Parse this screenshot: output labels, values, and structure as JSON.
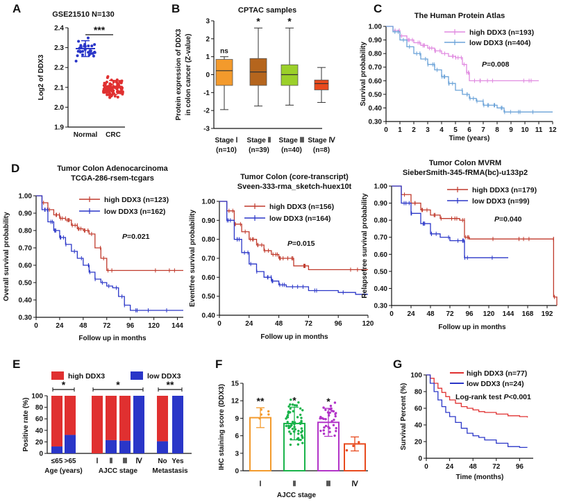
{
  "colors": {
    "red": "#e03030",
    "blue": "#2a36c8",
    "pink": "#e089e0",
    "lightblue": "#6aa2d8",
    "orange": "#f39a2c",
    "brown": "#b5651d",
    "lime": "#9bd02a",
    "redorange": "#e84a1e",
    "green": "#19b34a",
    "purple": "#b234c8",
    "darkred": "#c0392b",
    "navy": "#2a36c8"
  },
  "panel_labels": [
    "A",
    "B",
    "C",
    "D",
    "E",
    "F",
    "G"
  ],
  "chart_data": [
    {
      "id": "A",
      "type": "scatter",
      "title": "GSE21510  N=130",
      "ylabel": "Log2 of DDX3",
      "categories": [
        "Normal",
        "CRC"
      ],
      "ylim": [
        1.9,
        2.4
      ],
      "yticks": [
        "1.9",
        "2.0",
        "2.1",
        "2.2",
        "2.3",
        "2.4"
      ],
      "means": [
        2.295,
        2.1
      ],
      "sd": [
        0.04,
        0.035
      ],
      "n_points": [
        30,
        100
      ],
      "sig": "***"
    },
    {
      "id": "B",
      "type": "box",
      "title": "CPTAC samples",
      "ylabel": [
        "Protein expression of DDX3",
        "in colon cancer (Z-value)"
      ],
      "ylim": [
        -3,
        3
      ],
      "yticks": [
        "3",
        "2",
        "1",
        "0",
        "-1",
        "-2",
        "-3"
      ],
      "categories": [
        "Stage Ⅰ",
        "Stage Ⅱ",
        "Stage Ⅲ",
        "Stage Ⅳ"
      ],
      "ns": [
        "(n=10)",
        "(n=39)",
        "(n=40)",
        "(n=8)"
      ],
      "boxes": [
        {
          "min": -1.95,
          "q1": -0.6,
          "median": 0.22,
          "q3": 0.85,
          "max": 1.0,
          "sig": "ns"
        },
        {
          "min": -1.75,
          "q1": -0.6,
          "median": 0.15,
          "q3": 0.9,
          "max": 2.6,
          "sig": "*"
        },
        {
          "min": -1.7,
          "q1": -0.6,
          "median": 0.0,
          "q3": 0.55,
          "max": 2.6,
          "sig": "*"
        },
        {
          "min": -1.55,
          "q1": -0.85,
          "median": -0.5,
          "q3": -0.3,
          "max": 0.4,
          "sig": ""
        }
      ]
    },
    {
      "id": "C",
      "type": "line",
      "title": "The Human Protein Atlas",
      "xlabel": "Time (years)",
      "ylabel": "Survival probability",
      "xlim": [
        0,
        12
      ],
      "ylim": [
        0.3,
        1.0
      ],
      "xticks": [
        "0",
        "1",
        "2",
        "3",
        "4",
        "5",
        "6",
        "7",
        "8",
        "9",
        "10",
        "11",
        "12"
      ],
      "yticks": [
        "1.00",
        "0.90",
        "0.80",
        "0.70",
        "0.60",
        "0.50",
        "0.40",
        "0.30"
      ],
      "pvalue": "=0.008",
      "series": [
        {
          "name": "high DDX3 (n=193)",
          "color": "pink",
          "x": [
            0,
            0.5,
            1,
            1.5,
            2,
            2.5,
            3,
            3.5,
            4,
            4.5,
            5,
            5.5,
            5.8,
            6,
            7,
            8,
            11
          ],
          "y": [
            1,
            0.97,
            0.93,
            0.9,
            0.88,
            0.86,
            0.84,
            0.82,
            0.8,
            0.78,
            0.77,
            0.72,
            0.66,
            0.6,
            0.6,
            0.6,
            0.6
          ]
        },
        {
          "name": "low DDX3 (n=404)",
          "color": "lightblue",
          "x": [
            0,
            0.5,
            1,
            1.5,
            2,
            2.5,
            3,
            3.5,
            4,
            4.5,
            5,
            5.5,
            6,
            6.5,
            7,
            7.5,
            8,
            8.5,
            9,
            10,
            12
          ],
          "y": [
            1,
            0.96,
            0.9,
            0.85,
            0.8,
            0.76,
            0.72,
            0.68,
            0.63,
            0.58,
            0.53,
            0.5,
            0.47,
            0.45,
            0.42,
            0.42,
            0.4,
            0.37,
            0.37,
            0.37,
            0.37
          ]
        }
      ]
    },
    {
      "id": "D1",
      "type": "line",
      "title": [
        "Tumor Colon  Adenocarcinoma",
        "TCGA-286-rsem-tcgars"
      ],
      "xlabel": "Follow up in months",
      "ylabel": "Overall survival probability",
      "xlim": [
        0,
        150
      ],
      "ylim": [
        0.3,
        1.0
      ],
      "xticks": [
        "0",
        "24",
        "48",
        "72",
        "96",
        "120",
        "144"
      ],
      "yticks": [
        "1.00",
        "0.90",
        "0.80",
        "0.70",
        "0.60",
        "0.50",
        "0.40",
        "0.30"
      ],
      "pvalue": "=0.021",
      "series": [
        {
          "name": "high DDX3 (n=123)",
          "color": "darkred",
          "x": [
            0,
            6,
            12,
            18,
            24,
            30,
            36,
            42,
            48,
            54,
            60,
            66,
            72,
            78,
            150
          ],
          "y": [
            1,
            0.96,
            0.92,
            0.89,
            0.87,
            0.86,
            0.83,
            0.81,
            0.8,
            0.78,
            0.7,
            0.64,
            0.57,
            0.57,
            0.57
          ]
        },
        {
          "name": "low DDX3 (n=162)",
          "color": "navy",
          "x": [
            0,
            6,
            12,
            18,
            24,
            30,
            36,
            42,
            48,
            54,
            60,
            66,
            72,
            78,
            84,
            90,
            96,
            120,
            150
          ],
          "y": [
            1,
            0.92,
            0.85,
            0.8,
            0.76,
            0.72,
            0.68,
            0.64,
            0.6,
            0.56,
            0.52,
            0.5,
            0.48,
            0.47,
            0.42,
            0.37,
            0.34,
            0.34,
            0.34
          ]
        }
      ]
    },
    {
      "id": "D2",
      "type": "line",
      "title": [
        "Tumor Colon  (core-transcript)",
        "Sveen-333-rma_sketch-huex10t"
      ],
      "xlabel": "Follow up in months",
      "ylabel": "Eventfree survival probability",
      "xlim": [
        0,
        120
      ],
      "ylim": [
        0.4,
        1.0
      ],
      "xticks": [
        "0",
        "24",
        "48",
        "72",
        "96",
        "120"
      ],
      "yticks": [
        "1.00",
        "0.90",
        "0.80",
        "0.70",
        "0.60",
        "0.50",
        "0.40"
      ],
      "pvalue": "=0.015",
      "series": [
        {
          "name": "high DDX3 (n=156)",
          "color": "darkred",
          "x": [
            0,
            6,
            12,
            18,
            24,
            30,
            36,
            42,
            48,
            54,
            60,
            72,
            120
          ],
          "y": [
            1,
            0.95,
            0.88,
            0.84,
            0.8,
            0.77,
            0.74,
            0.72,
            0.7,
            0.7,
            0.66,
            0.64,
            0.64
          ]
        },
        {
          "name": "low DDX3 (n=164)",
          "color": "navy",
          "x": [
            0,
            6,
            12,
            18,
            24,
            30,
            36,
            42,
            48,
            54,
            60,
            72,
            96,
            110,
            120
          ],
          "y": [
            1,
            0.9,
            0.8,
            0.73,
            0.67,
            0.63,
            0.6,
            0.58,
            0.56,
            0.55,
            0.55,
            0.53,
            0.52,
            0.51,
            0.51
          ]
        }
      ]
    },
    {
      "id": "D3",
      "type": "line",
      "title": [
        "Tumor Colon MVRM",
        "SieberSmith-345-fRMA(bc)-u133p2"
      ],
      "xlabel": "Follow up in months",
      "ylabel": "Relapsefree survival probability",
      "xlim": [
        0,
        204
      ],
      "ylim": [
        0.3,
        1.0
      ],
      "xticks": [
        "0",
        "24",
        "48",
        "72",
        "96",
        "120",
        "144",
        "168",
        "192"
      ],
      "yticks": [
        "1.00",
        "0.90",
        "0.80",
        "0.70",
        "0.60",
        "0.50",
        "0.40",
        "0.30"
      ],
      "pvalue": "=0.040",
      "series": [
        {
          "name": "high DDX3 (n=179)",
          "color": "darkred",
          "x": [
            0,
            12,
            24,
            36,
            48,
            60,
            72,
            84,
            90,
            96,
            144,
            198,
            200,
            204
          ],
          "y": [
            1,
            0.95,
            0.9,
            0.86,
            0.83,
            0.81,
            0.81,
            0.8,
            0.7,
            0.69,
            0.69,
            0.69,
            0.35,
            0.3
          ]
        },
        {
          "name": "low DDX3 (n=99)",
          "color": "navy",
          "x": [
            0,
            12,
            24,
            36,
            48,
            60,
            72,
            84,
            90,
            96,
            144
          ],
          "y": [
            1,
            0.9,
            0.84,
            0.78,
            0.72,
            0.7,
            0.68,
            0.68,
            0.58,
            0.58,
            0.58
          ]
        }
      ]
    },
    {
      "id": "E",
      "type": "bar",
      "ylabel": "Positive rate (%)",
      "ylim": [
        0,
        100
      ],
      "yticks": [
        "0",
        "20",
        "40",
        "60",
        "80",
        "100"
      ],
      "legend": [
        "high DDX3",
        "low DDX3"
      ],
      "groups": [
        {
          "label": "Age (years)",
          "bars": [
            "≤65",
            ">65"
          ],
          "low": [
            12,
            32
          ],
          "sig": "*"
        },
        {
          "label": "AJCC stage",
          "bars": [
            "Ⅰ",
            "Ⅱ",
            "Ⅲ",
            "Ⅳ"
          ],
          "low": [
            0,
            23,
            22,
            100
          ],
          "sig": "*"
        },
        {
          "label": "Metastasis",
          "bars": [
            "No",
            "Yes"
          ],
          "low": [
            21,
            100
          ],
          "sig": "**"
        }
      ]
    },
    {
      "id": "F",
      "type": "bar",
      "xlabel": "AJCC stage",
      "ylabel": "IHC staining score (DDX3)",
      "ylim": [
        0,
        15
      ],
      "yticks": [
        "0",
        "3",
        "6",
        "9",
        "12",
        "15"
      ],
      "categories": [
        "Ⅰ",
        "Ⅱ",
        "Ⅲ",
        "Ⅳ"
      ],
      "values": [
        9.1,
        8.1,
        8.3,
        4.6
      ],
      "sd": [
        1.7,
        2.8,
        2.4,
        1.2
      ],
      "sig": [
        "**",
        "*",
        "*",
        ""
      ],
      "colors": [
        "orange",
        "green",
        "purple",
        "redorange"
      ]
    },
    {
      "id": "G",
      "type": "line",
      "xlabel": "Time (months)",
      "ylabel": "Survival Percent (%)",
      "xlim": [
        0,
        110
      ],
      "ylim": [
        0,
        100
      ],
      "xticks": [
        "0",
        "24",
        "48",
        "72",
        "96"
      ],
      "yticks": [
        "0",
        "20",
        "40",
        "60",
        "80",
        "100"
      ],
      "annotation": "Log-rank test ",
      "pvalue": "<0.001",
      "series": [
        {
          "name": "high DDX3 (n=77)",
          "color": "red",
          "x": [
            0,
            4,
            8,
            12,
            16,
            20,
            24,
            30,
            36,
            42,
            48,
            54,
            60,
            72,
            84,
            96,
            104
          ],
          "y": [
            100,
            96,
            90,
            84,
            79,
            74,
            70,
            66,
            62,
            60,
            58,
            56,
            55,
            53,
            51,
            50,
            49
          ]
        },
        {
          "name": "low DDX3 (n=24)",
          "color": "blue",
          "x": [
            0,
            4,
            8,
            12,
            16,
            20,
            24,
            30,
            36,
            42,
            48,
            54,
            60,
            72,
            84,
            96,
            104
          ],
          "y": [
            100,
            90,
            80,
            70,
            62,
            55,
            50,
            43,
            36,
            30,
            27,
            25,
            22,
            18,
            14,
            13,
            13
          ]
        }
      ]
    }
  ]
}
